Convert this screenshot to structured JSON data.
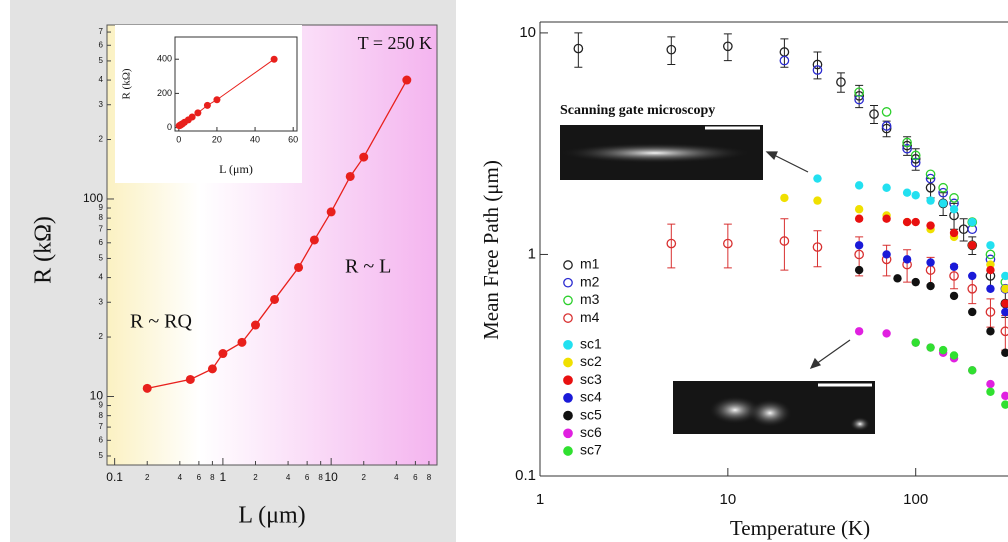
{
  "chart_data": [
    {
      "type": "line",
      "xlabel": "L (μm)",
      "ylabel": "R (kΩ)",
      "annotations": [
        "T = 250 K",
        "R ~ RQ",
        "R ~ L"
      ],
      "x": [
        0.2,
        0.5,
        0.8,
        1,
        1.5,
        2,
        3,
        5,
        7,
        10,
        15,
        20,
        50
      ],
      "values": [
        11,
        12.2,
        13.8,
        16.5,
        18.8,
        23,
        31,
        45,
        62,
        86,
        130,
        163,
        400
      ],
      "color": "#e8201c",
      "xscale": "log",
      "yscale": "log",
      "xlim": [
        0.085,
        95
      ],
      "ylim": [
        4.5,
        760
      ],
      "xticks": [
        0.1,
        {
          "value": 0.2,
          "label": "2"
        },
        {
          "value": 0.4,
          "label": "4"
        },
        {
          "value": 0.6,
          "label": "6"
        },
        {
          "value": 0.8,
          "label": "8"
        },
        1,
        {
          "value": 2,
          "label": "2"
        },
        {
          "value": 4,
          "label": "4"
        },
        {
          "value": 6,
          "label": "6"
        },
        {
          "value": 8,
          "label": "8"
        },
        10,
        {
          "value": 20,
          "label": "2"
        },
        {
          "value": 40,
          "label": "4"
        },
        {
          "value": 60,
          "label": "6"
        },
        {
          "value": 80,
          "label": "8"
        }
      ],
      "yticks": [
        {
          "value": 5,
          "label": "5"
        },
        {
          "value": 6,
          "label": "6"
        },
        {
          "value": 7,
          "label": "7"
        },
        {
          "value": 8,
          "label": "8"
        },
        {
          "value": 9,
          "label": "9"
        },
        10,
        {
          "value": 20,
          "label": "2"
        },
        {
          "value": 30,
          "label": "3"
        },
        {
          "value": 40,
          "label": "4"
        },
        {
          "value": 50,
          "label": "5"
        },
        {
          "value": 60,
          "label": "6"
        },
        {
          "value": 70,
          "label": "7"
        },
        {
          "value": 80,
          "label": "8"
        },
        {
          "value": 90,
          "label": "9"
        },
        100,
        {
          "value": 200,
          "label": "2"
        },
        {
          "value": 300,
          "label": "3"
        },
        {
          "value": 400,
          "label": "4"
        },
        {
          "value": 500,
          "label": "5"
        },
        {
          "value": 600,
          "label": "6"
        },
        {
          "value": 700,
          "label": "7"
        }
      ],
      "inset": {
        "xlabel": "L (μm)",
        "ylabel": "R (kΩ)",
        "xlim": [
          -2,
          62
        ],
        "ylim": [
          -20,
          530
        ],
        "xticks": [
          0,
          20,
          40,
          60
        ],
        "yticks": [
          0,
          200,
          400
        ]
      }
    },
    {
      "type": "scatter",
      "xlabel": "Temperature (K)",
      "ylabel": "Mean Free Path (μm)",
      "annotations": [
        "Scanning gate microscopy"
      ],
      "xscale": "log",
      "yscale": "log",
      "xlim": [
        1,
        310
      ],
      "ylim": [
        0.1,
        11.2
      ],
      "xticks": [
        1,
        10,
        100
      ],
      "yticks": [
        0.1,
        1,
        10
      ],
      "legend": "left",
      "series": [
        {
          "name": "m1",
          "color": "#222222",
          "marker": "open",
          "x": [
            1.6,
            5,
            10,
            20,
            30,
            40,
            50,
            60,
            70,
            90,
            100,
            120,
            140,
            160,
            180,
            200,
            250,
            300
          ],
          "values": [
            8.5,
            8.4,
            8.7,
            8.2,
            7.2,
            6.0,
            5.2,
            4.3,
            3.7,
            3.1,
            2.7,
            2.0,
            1.7,
            1.5,
            1.3,
            1.1,
            0.8,
            0.6
          ],
          "errors": [
            1.5,
            1.2,
            1.2,
            1.2,
            1.0,
            0.6,
            0.6,
            0.4,
            0.3,
            0.3,
            0.3,
            0.2,
            0.2,
            0.2,
            0.15,
            0.1,
            0.1,
            0.08
          ]
        },
        {
          "name": "m2",
          "color": "#2b2bd0",
          "marker": "open",
          "x": [
            20,
            30,
            50,
            70,
            90,
            100,
            120,
            140,
            160,
            200,
            250,
            300
          ],
          "values": [
            7.5,
            6.8,
            5.0,
            3.8,
            3.0,
            2.6,
            2.2,
            1.9,
            1.7,
            1.3,
            0.95,
            0.7
          ]
        },
        {
          "name": "m3",
          "color": "#2ccf2c",
          "marker": "open",
          "x": [
            50,
            70,
            90,
            100,
            120,
            140,
            160,
            200,
            250,
            300
          ],
          "values": [
            5.4,
            4.4,
            3.2,
            2.8,
            2.3,
            2.0,
            1.8,
            1.4,
            1.0,
            0.75
          ]
        },
        {
          "name": "m4",
          "color": "#d83030",
          "marker": "open",
          "x": [
            5,
            10,
            20,
            30,
            50,
            70,
            90,
            120,
            160,
            200,
            250,
            300
          ],
          "values": [
            1.12,
            1.12,
            1.15,
            1.08,
            1.0,
            0.95,
            0.9,
            0.85,
            0.8,
            0.7,
            0.55,
            0.45
          ],
          "errors": [
            0.25,
            0.25,
            0.3,
            0.2,
            0.2,
            0.15,
            0.15,
            0.12,
            0.1,
            0.1,
            0.08,
            0.08
          ]
        },
        {
          "name": "sc1",
          "color": "#22e0f0",
          "marker": "filled",
          "x": [
            30,
            50,
            70,
            90,
            100,
            120,
            140,
            160,
            200,
            250,
            300
          ],
          "values": [
            2.2,
            2.05,
            2.0,
            1.9,
            1.85,
            1.75,
            1.7,
            1.6,
            1.4,
            1.1,
            0.8
          ]
        },
        {
          "name": "sc2",
          "color": "#f0e000",
          "marker": "filled",
          "x": [
            20,
            30,
            50,
            70,
            90,
            120,
            160,
            200,
            250,
            300
          ],
          "values": [
            1.8,
            1.75,
            1.6,
            1.5,
            1.4,
            1.3,
            1.2,
            1.1,
            0.9,
            0.7
          ]
        },
        {
          "name": "sc3",
          "color": "#e81010",
          "marker": "filled",
          "x": [
            50,
            70,
            90,
            100,
            120,
            160,
            200,
            250,
            300
          ],
          "values": [
            1.45,
            1.45,
            1.4,
            1.4,
            1.35,
            1.25,
            1.1,
            0.85,
            0.6
          ]
        },
        {
          "name": "sc4",
          "color": "#1a1ad8",
          "marker": "filled",
          "x": [
            50,
            70,
            90,
            120,
            160,
            200,
            250,
            300
          ],
          "values": [
            1.1,
            1.0,
            0.95,
            0.92,
            0.88,
            0.8,
            0.7,
            0.55
          ]
        },
        {
          "name": "sc5",
          "color": "#111111",
          "marker": "filled",
          "x": [
            50,
            80,
            100,
            120,
            160,
            200,
            250,
            300
          ],
          "values": [
            0.85,
            0.78,
            0.75,
            0.72,
            0.65,
            0.55,
            0.45,
            0.36
          ]
        },
        {
          "name": "sc6",
          "color": "#e020e0",
          "marker": "filled",
          "x": [
            50,
            70,
            100,
            120,
            140,
            160,
            200,
            250,
            300
          ],
          "values": [
            0.45,
            0.44,
            0.4,
            0.38,
            0.36,
            0.34,
            0.3,
            0.26,
            0.23
          ]
        },
        {
          "name": "sc7",
          "color": "#30e030",
          "marker": "filled",
          "x": [
            100,
            120,
            140,
            160,
            200,
            250,
            300
          ],
          "values": [
            0.4,
            0.38,
            0.37,
            0.35,
            0.3,
            0.24,
            0.21
          ]
        }
      ]
    }
  ]
}
